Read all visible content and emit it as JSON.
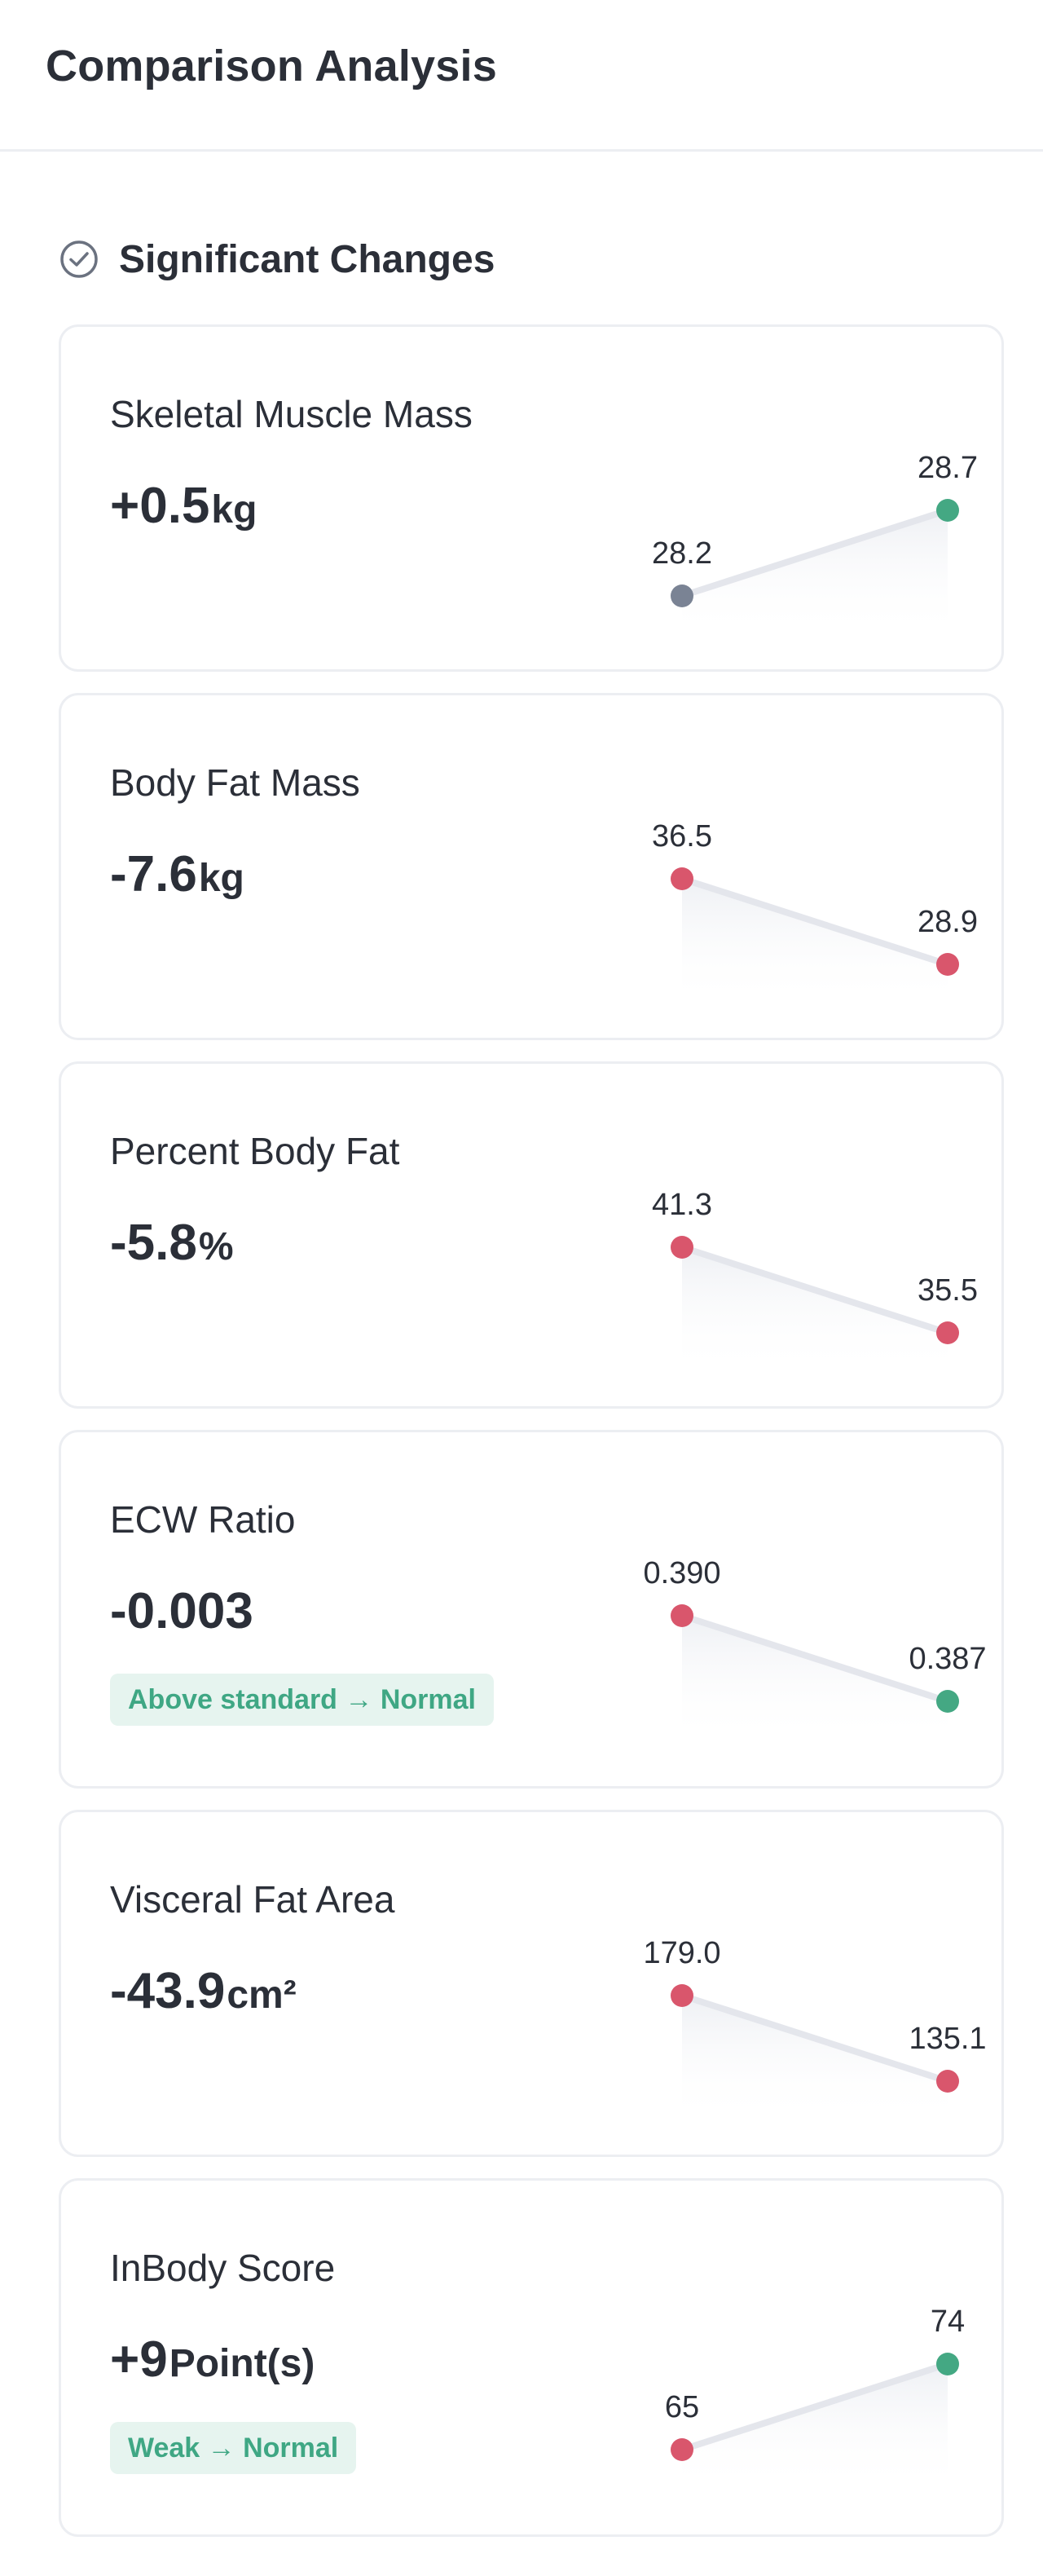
{
  "header": {
    "title": "Comparison Analysis"
  },
  "section": {
    "title": "Significant Changes",
    "icon": "check-circle-icon"
  },
  "colors": {
    "gray": "#7a8394",
    "red": "#d9566c",
    "green": "#44a883",
    "badge_bg": "#e6f4ef",
    "badge_text": "#3fa784"
  },
  "metrics": [
    {
      "name": "Skeletal Muscle Mass",
      "change": "+0.5",
      "unit": "kg",
      "before": "28.2",
      "after": "28.7",
      "before_color": "gray",
      "after_color": "green",
      "trend": "up",
      "badge": ""
    },
    {
      "name": "Body Fat Mass",
      "change": "-7.6",
      "unit": "kg",
      "before": "36.5",
      "after": "28.9",
      "before_color": "red",
      "after_color": "red",
      "trend": "down",
      "badge": ""
    },
    {
      "name": "Percent Body Fat",
      "change": "-5.8",
      "unit": "%",
      "before": "41.3",
      "after": "35.5",
      "before_color": "red",
      "after_color": "red",
      "trend": "down",
      "badge": ""
    },
    {
      "name": "ECW Ratio",
      "change": "-0.003",
      "unit": "",
      "before": "0.390",
      "after": "0.387",
      "before_color": "red",
      "after_color": "green",
      "trend": "down",
      "badge": "Above standard → Normal"
    },
    {
      "name": "Visceral Fat Area",
      "change": "-43.9",
      "unit": "cm²",
      "before": "179.0",
      "after": "135.1",
      "before_color": "red",
      "after_color": "red",
      "trend": "down",
      "badge": ""
    },
    {
      "name": "InBody Score",
      "change": "+9",
      "unit": "Point(s)",
      "before": "65",
      "after": "74",
      "before_color": "red",
      "after_color": "green",
      "trend": "up",
      "badge": "Weak → Normal"
    }
  ]
}
